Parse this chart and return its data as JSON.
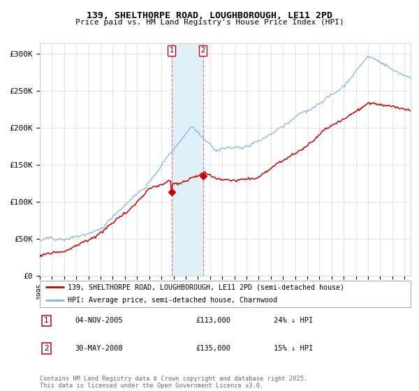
{
  "title": "139, SHELTHORPE ROAD, LOUGHBOROUGH, LE11 2PD",
  "subtitle": "Price paid vs. HM Land Registry's House Price Index (HPI)",
  "ylabel_ticks": [
    "£0",
    "£50K",
    "£100K",
    "£150K",
    "£200K",
    "£250K",
    "£300K"
  ],
  "ytick_values": [
    0,
    50000,
    100000,
    150000,
    200000,
    250000,
    300000
  ],
  "ylim": [
    0,
    315000
  ],
  "xlim_start": 1995,
  "xlim_end": 2025.5,
  "hpi_color": "#7ab8d8",
  "price_color": "#cc0000",
  "shade_color": "#daeef7",
  "vline_color": "#e08080",
  "legend1": "139, SHELTHORPE ROAD, LOUGHBOROUGH, LE11 2PD (semi-detached house)",
  "legend2": "HPI: Average price, semi-detached house, Charnwood",
  "transaction1_date": "04-NOV-2005",
  "transaction1_price": "£113,000",
  "transaction1_hpi": "24% ↓ HPI",
  "transaction2_date": "30-MAY-2008",
  "transaction2_price": "£135,000",
  "transaction2_hpi": "15% ↓ HPI",
  "footer": "Contains HM Land Registry data © Crown copyright and database right 2025.\nThis data is licensed under the Open Government Licence v3.0.",
  "marker1_x": 2005.85,
  "marker1_y": 113000,
  "marker2_x": 2008.42,
  "marker2_y": 135000,
  "shade_x1": 2005.85,
  "shade_x2": 2008.42
}
